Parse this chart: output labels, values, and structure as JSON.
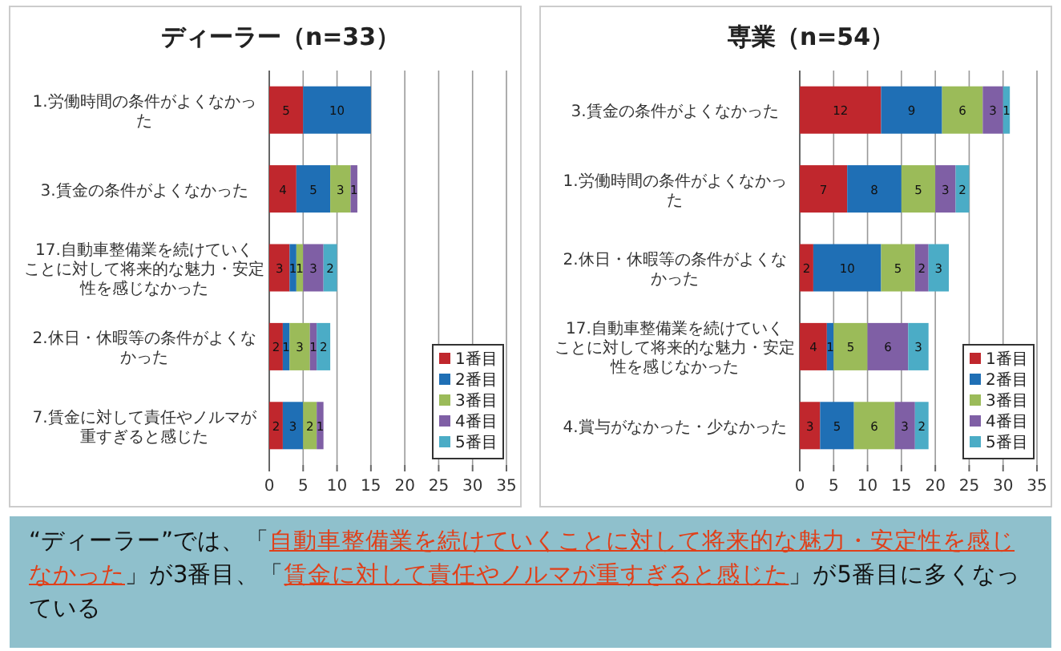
{
  "chart_data": [
    {
      "type": "bar",
      "orientation": "horizontal",
      "stacked": true,
      "title": "ディーラー（n=33）",
      "categories": [
        "1.労働時間の条件がよくなかった",
        "3.賃金の条件がよくなかった",
        "17.自動車整備業を続けていくことに対して将来的な魅力・安定性を感じなかった",
        "2.休日・休暇等の条件がよくなかった",
        "7.賃金に対して責任やノルマが重すぎると感じた"
      ],
      "series": [
        {
          "name": "1番目",
          "color": "#c0272d",
          "values": [
            5,
            4,
            3,
            2,
            2
          ]
        },
        {
          "name": "2番目",
          "color": "#1f6fb5",
          "values": [
            10,
            5,
            1,
            1,
            3
          ]
        },
        {
          "name": "3番目",
          "color": "#9bbb59",
          "values": [
            null,
            3,
            1,
            3,
            2
          ]
        },
        {
          "name": "4番目",
          "color": "#7f5fa5",
          "values": [
            null,
            1,
            3,
            1,
            1
          ]
        },
        {
          "name": "5番目",
          "color": "#4bacc6",
          "values": [
            null,
            null,
            2,
            2,
            null
          ]
        }
      ],
      "xlim": [
        0,
        35
      ],
      "xticks": [
        0,
        5,
        10,
        15,
        20,
        25,
        30,
        35
      ],
      "grid": "x",
      "legend": "bottom right",
      "data_labels": true
    },
    {
      "type": "bar",
      "orientation": "horizontal",
      "stacked": true,
      "title": "専業（n=54）",
      "categories": [
        "3.賃金の条件がよくなかった",
        "1.労働時間の条件がよくなかった",
        "2.休日・休暇等の条件がよくなかった",
        "17.自動車整備業を続けていくことに対して将来的な魅力・安定性を感じなかった",
        "4.賞与がなかった・少なかった"
      ],
      "series": [
        {
          "name": "1番目",
          "color": "#c0272d",
          "values": [
            12,
            7,
            2,
            4,
            3
          ]
        },
        {
          "name": "2番目",
          "color": "#1f6fb5",
          "values": [
            9,
            8,
            10,
            1,
            5
          ]
        },
        {
          "name": "3番目",
          "color": "#9bbb59",
          "values": [
            6,
            5,
            5,
            5,
            6
          ]
        },
        {
          "name": "4番目",
          "color": "#7f5fa5",
          "values": [
            3,
            3,
            2,
            6,
            3
          ]
        },
        {
          "name": "5番目",
          "color": "#4bacc6",
          "values": [
            1,
            2,
            3,
            3,
            2
          ]
        }
      ],
      "xlim": [
        0,
        35
      ],
      "xticks": [
        0,
        5,
        10,
        15,
        20,
        25,
        30,
        35
      ],
      "grid": "x",
      "legend": "bottom right",
      "data_labels": true
    },
    {
      "type": "other",
      "annotations": [
        "“ディーラー”では、「",
        "自動車整備業を続けていくことに対して将来的な魅力・安定性を感じなかった",
        "」が3番目、「",
        "賃金に対して責任やノルマが重すぎると感じた",
        "」が5番目に多くなっている"
      ]
    }
  ]
}
